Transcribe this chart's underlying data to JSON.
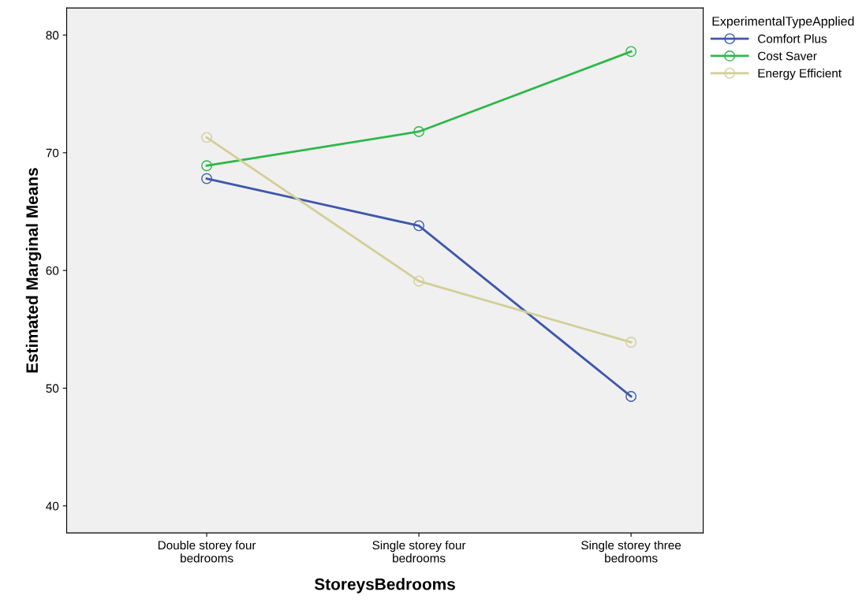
{
  "chart_data": {
    "type": "line",
    "xlabel": "StoreysBedrooms",
    "ylabel": "Estimated Marginal Means",
    "legend_title": "ExperimentalTypeApplied",
    "categories": [
      "Double storey four\nbedrooms",
      "Single storey four\nbedrooms",
      "Single storey three\nbedrooms"
    ],
    "series": [
      {
        "name": "Comfort Plus",
        "color": "#3e58ac",
        "values": [
          67.8,
          63.8,
          49.3
        ]
      },
      {
        "name": "Cost Saver",
        "color": "#2eb848",
        "values": [
          68.9,
          71.8,
          78.6
        ]
      },
      {
        "name": "Energy Efficient",
        "color": "#d3ce97",
        "values": [
          71.3,
          59.1,
          53.9
        ]
      }
    ],
    "ylim": [
      37.7,
      82.3
    ],
    "yticks": [
      40,
      50,
      60,
      70,
      80
    ],
    "grid": false,
    "legend": "top right",
    "marker": "circle",
    "line_style": "solid"
  }
}
